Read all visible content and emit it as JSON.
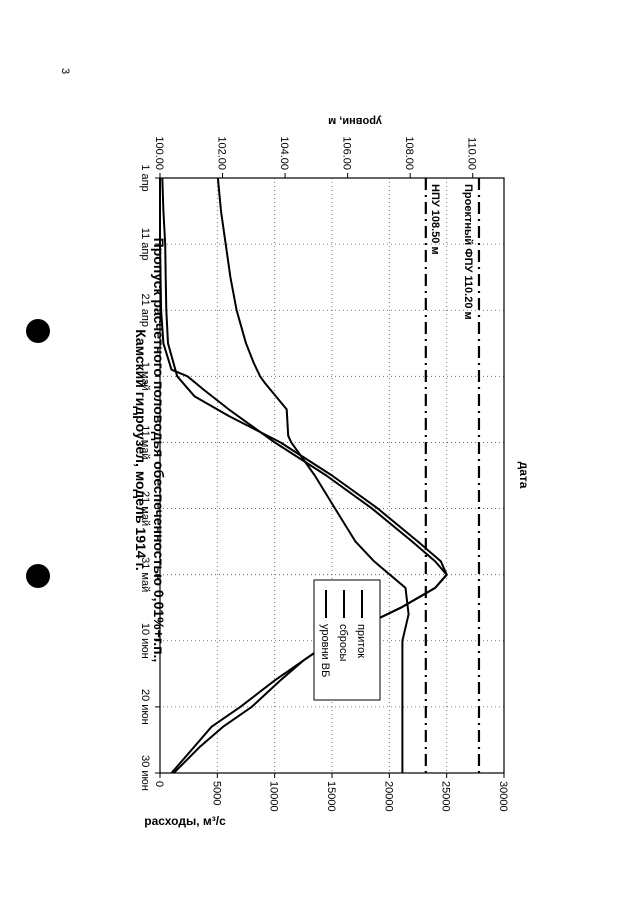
{
  "page": {
    "page_number": "3",
    "hole_punches": 2
  },
  "chart_data": {
    "type": "line",
    "title_line1": "Пропуск расчетного половодья обеспеченностью 0,01%+г.п.,",
    "title_line2": "Камский гидроузел, модель 1914 г.",
    "xlabel": "дата",
    "ylabel_left": "расходы, м³/с",
    "ylabel_right": "уровни, м",
    "x_ticks": [
      "1 апр",
      "11 апр",
      "21 апр",
      "1 май",
      "11 май",
      "21 май",
      "31 май",
      "10 июн",
      "20 июн",
      "30 июн"
    ],
    "x_tick_days": [
      0,
      10,
      20,
      30,
      40,
      50,
      60,
      70,
      80,
      90
    ],
    "xlim_days": [
      0,
      90
    ],
    "ylim_left": [
      0,
      30000
    ],
    "y_ticks_left": [
      "0",
      "5000",
      "10000",
      "15000",
      "20000",
      "25000",
      "30000"
    ],
    "ylim_right": [
      100,
      111
    ],
    "y_ticks_right": [
      "100.00",
      "102.00",
      "104.00",
      "106.00",
      "108.00",
      "110.00"
    ],
    "grid": true,
    "legend_placement": "bottom-center",
    "legend": [
      "приток",
      "сбросы",
      "уровни ВБ"
    ],
    "series": [
      {
        "name": "приток",
        "axis": "left",
        "x_days": [
          0,
          5,
          10,
          15,
          20,
          25,
          30,
          33,
          36,
          40,
          45,
          50,
          55,
          58,
          60,
          62,
          65,
          70,
          73,
          76,
          80,
          83,
          86,
          90
        ],
        "values": [
          200,
          300,
          450,
          500,
          550,
          700,
          1500,
          3000,
          6000,
          10500,
          15000,
          19000,
          22500,
          24500,
          25000,
          24000,
          21000,
          15000,
          12500,
          10500,
          8000,
          5500,
          3500,
          1200
        ]
      },
      {
        "name": "сбросы",
        "axis": "left",
        "x_days": [
          0,
          10,
          20,
          25,
          29,
          30,
          32,
          35,
          40,
          45,
          50,
          55,
          58,
          60,
          62,
          65,
          70,
          73,
          76,
          80,
          83,
          86,
          90
        ],
        "values": [
          0,
          0,
          100,
          300,
          1000,
          2400,
          3800,
          6000,
          10000,
          14500,
          18500,
          22000,
          24000,
          25000,
          24000,
          21000,
          15000,
          12500,
          10000,
          7000,
          4500,
          3000,
          1000
        ]
      },
      {
        "name": "уровни ВБ",
        "axis": "right",
        "x_days": [
          0,
          5,
          10,
          15,
          20,
          25,
          28,
          30,
          31,
          35,
          39,
          40,
          45,
          50,
          55,
          58,
          60,
          62,
          66,
          70,
          90
        ],
        "values": [
          101.85,
          101.95,
          102.1,
          102.25,
          102.45,
          102.75,
          103.0,
          103.2,
          103.35,
          104.05,
          104.1,
          104.2,
          104.95,
          105.6,
          106.25,
          106.85,
          107.35,
          107.85,
          107.95,
          107.75,
          107.75
        ]
      }
    ],
    "reference_lines": [
      {
        "label": "Проектный ФПУ 110.20 м",
        "axis": "right",
        "value": 110.2
      },
      {
        "label": "НПУ 108.50 м",
        "axis": "right",
        "value": 108.5
      }
    ]
  }
}
